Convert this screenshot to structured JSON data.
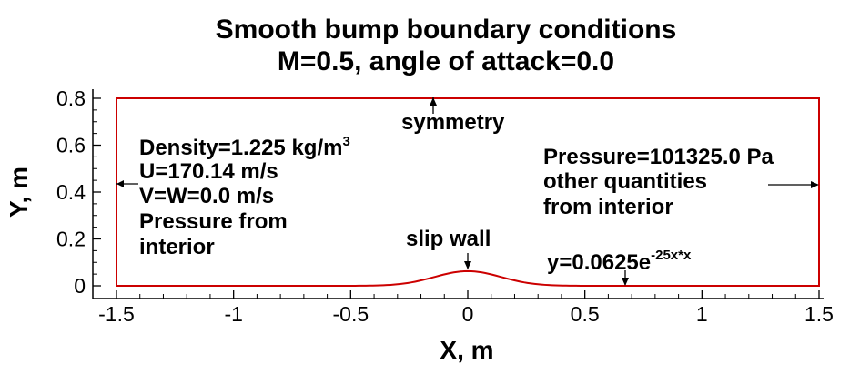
{
  "title": {
    "line1": "Smooth bump boundary conditions",
    "line2": "M=0.5, angle of attack=0.0"
  },
  "axes": {
    "xlabel": "X, m",
    "ylabel": "Y, m",
    "xlim": [
      -1.5,
      1.5
    ],
    "ylim": [
      0,
      0.8
    ],
    "xticks": [
      {
        "value": -1.5,
        "label": "-1.5"
      },
      {
        "value": -1,
        "label": "-1"
      },
      {
        "value": -0.5,
        "label": "-0.5"
      },
      {
        "value": 0,
        "label": "0"
      },
      {
        "value": 0.5,
        "label": "0.5"
      },
      {
        "value": 1,
        "label": "1"
      },
      {
        "value": 1.5,
        "label": "1.5"
      }
    ],
    "yticks": [
      {
        "value": 0,
        "label": "0"
      },
      {
        "value": 0.2,
        "label": "0.2"
      },
      {
        "value": 0.4,
        "label": "0.4"
      },
      {
        "value": 0.6,
        "label": "0.6"
      },
      {
        "value": 0.8,
        "label": "0.8"
      }
    ]
  },
  "domain_color": "#cc0000",
  "bump": {
    "amplitude": 0.0625,
    "coefficient": 25
  },
  "annotations": {
    "inflow": {
      "line1_base": "Density=1.225 kg/m",
      "line1_sup": "3",
      "line2": "U=170.14 m/s",
      "line3": "V=W=0.0 m/s",
      "line4": "Pressure from",
      "line5": "interior"
    },
    "symmetry": "symmetry",
    "outflow": {
      "line1": "Pressure=101325.0 Pa",
      "line2": "other quantities",
      "line3": "from interior"
    },
    "slip_wall": "slip wall",
    "equation": {
      "base": "y=0.0625e",
      "sup": "-25x*x"
    }
  }
}
